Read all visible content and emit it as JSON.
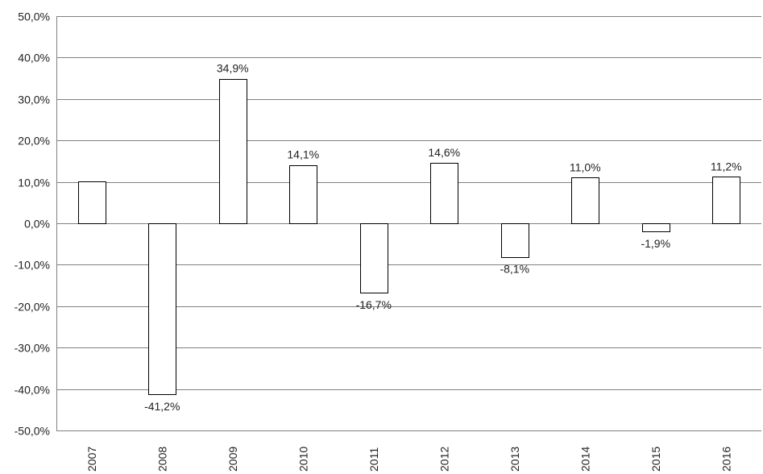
{
  "chart_data": {
    "type": "bar",
    "title": "",
    "xlabel": "",
    "ylabel": "",
    "categories": [
      "2007",
      "2008",
      "2009",
      "2010",
      "2011",
      "2012",
      "2013",
      "2014",
      "2015",
      "2016"
    ],
    "values": [
      10.2,
      -41.2,
      34.9,
      14.1,
      -16.7,
      14.6,
      -8.1,
      11.0,
      -1.9,
      11.2
    ],
    "data_labels": [
      "",
      "-41,2%",
      "34,9%",
      "14,1%",
      "-16,7%",
      "14,6%",
      "-8,1%",
      "11,0%",
      "-1,9%",
      "11,2%"
    ],
    "ylim": [
      -50,
      50
    ],
    "yticks": [
      50,
      40,
      30,
      20,
      10,
      0,
      -10,
      -20,
      -30,
      -40,
      -50
    ],
    "ytick_labels": [
      "50,0%",
      "40,0%",
      "30,0%",
      "20,0%",
      "10,0%",
      "0,0%",
      "-10,0%",
      "-20,0%",
      "-30,0%",
      "-40,0%",
      "-50,0%"
    ],
    "grid": true,
    "legend": "none",
    "category_label_rotation": "vertical",
    "colors": {
      "bar_fill": "#ffffff",
      "bar_stroke": "#000000",
      "grid": "#808080",
      "text": "#222222"
    }
  }
}
